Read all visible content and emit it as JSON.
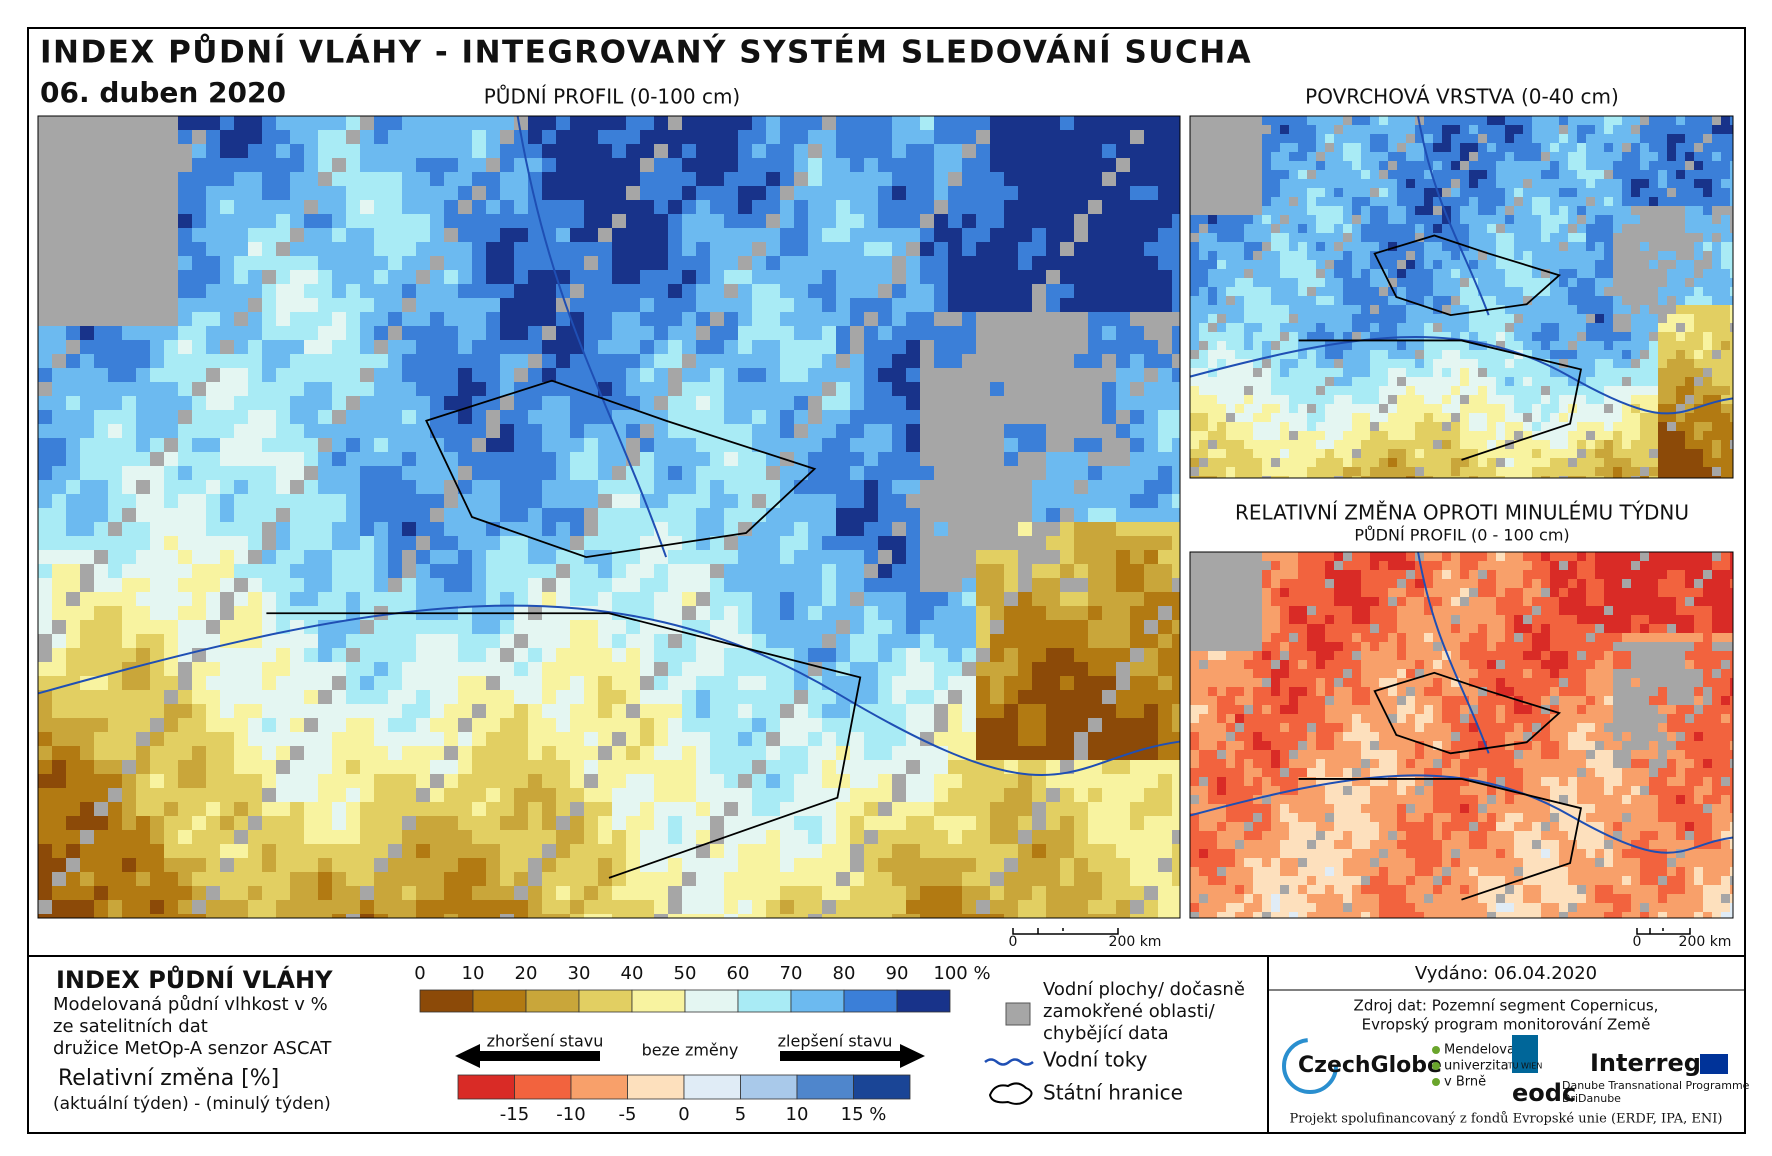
{
  "header": {
    "title": "INDEX PŮDNÍ VLÁHY - INTEGROVANÝ SYSTÉM SLEDOVÁNÍ SUCHA",
    "date": "06. duben 2020"
  },
  "maps": {
    "main": "PŮDNÍ PROFIL (0-100 cm)",
    "surface": "POVRCHOVÁ VRSTVA (0-40 cm)",
    "change_title": "RELATIVNÍ ZMĚNA OPROTI MINULÉMU TÝDNU",
    "change_subtitle": "PŮDNÍ PROFIL (0 - 100 cm)"
  },
  "scalebars": [
    {
      "start": "0",
      "end": "200 km"
    },
    {
      "start": "0",
      "end": "200 km"
    }
  ],
  "legend": {
    "title": "INDEX PŮDNÍ VLÁHY",
    "description": [
      "Modelovaná půdní vlhkost v %",
      "ze satelitních dat",
      "družice MetOp-A senzor ASCAT"
    ],
    "change_title": "Relativní změna [%]",
    "change_formula": "(aktuální týden) - (minulý týden)",
    "index_scale": {
      "labels": [
        "0",
        "10",
        "20",
        "30",
        "40",
        "50",
        "60",
        "70",
        "80",
        "90",
        "100 %"
      ],
      "colors": [
        "#8c4a08",
        "#b27a12",
        "#c9a63a",
        "#e2cf62",
        "#f8f3a0",
        "#e4f6f2",
        "#a9ebf5",
        "#6cbaf0",
        "#3b7fd8",
        "#18338a"
      ]
    },
    "change_scale": {
      "worse": "zhoršení stavu",
      "none": "beze změny",
      "better": "zlepšení stavu",
      "labels": [
        "-15",
        "-10",
        "-5",
        "0",
        "5",
        "10",
        "15 %"
      ],
      "colors": [
        "#d92b26",
        "#f2633e",
        "#f8a06a",
        "#fde0bd",
        "#e0ecf6",
        "#a9c9ea",
        "#4f86cc",
        "#1a4596"
      ]
    },
    "symbols": {
      "water": [
        "Vodní plochy/ dočasně",
        "zamokřené oblasti/",
        "chybějící data"
      ],
      "rivers": "Vodní toky",
      "borders": "Státní hranice"
    }
  },
  "footer": {
    "issued": "Vydáno: 06.04.2020",
    "source": [
      "Zdroj dat: Pozemní segment Copernicus,",
      "Evropský program monitorování Země"
    ],
    "logos": {
      "czechglobe": "CzechGlobe",
      "mendelu": [
        "Mendelova",
        "univerzita",
        "v Brně"
      ],
      "tu": "TU WIEN",
      "eodc": "eodc",
      "interreg": "Interreg",
      "danube": [
        "Danube Transnational Programme",
        "DriDanube"
      ]
    },
    "funding": "Projekt spolufinancovaný z fondů Evropské unie (ERDF, IPA, ENI)"
  }
}
